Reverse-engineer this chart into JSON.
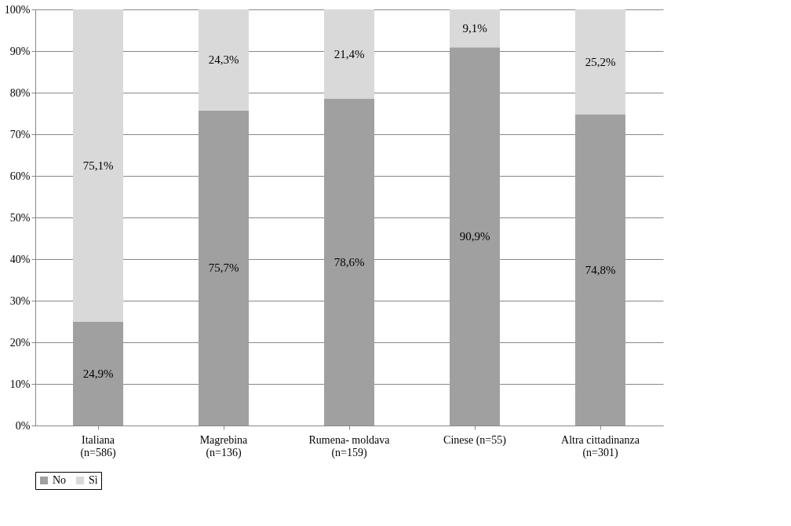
{
  "chart_data": {
    "type": "bar",
    "stacked": true,
    "categories": [
      "Italiana\n(n=586)",
      "Magrebina\n(n=136)",
      "Rumena- moldava\n(n=159)",
      "Cinese (n=55)",
      "Altra cittadinanza\n(n=301)"
    ],
    "series": [
      {
        "name": "No",
        "color": "#a0a0a0",
        "values": [
          24.9,
          75.7,
          78.6,
          90.9,
          74.8
        ],
        "value_labels": [
          "24,9%",
          "75,7%",
          "78,6%",
          "90,9%",
          "74,8%"
        ]
      },
      {
        "name": "Sì",
        "color": "#d9d9d9",
        "values": [
          75.1,
          24.3,
          21.4,
          9.1,
          25.2
        ],
        "value_labels": [
          "75,1%",
          "24,3%",
          "21,4%",
          "9,1%",
          "25,2%"
        ]
      }
    ],
    "ylim": [
      0,
      100
    ],
    "yticks": [
      {
        "value": 0,
        "label": "0%"
      },
      {
        "value": 10,
        "label": "10%"
      },
      {
        "value": 20,
        "label": "20%"
      },
      {
        "value": 30,
        "label": "30%"
      },
      {
        "value": 40,
        "label": "40%"
      },
      {
        "value": 50,
        "label": "50%"
      },
      {
        "value": 60,
        "label": "60%"
      },
      {
        "value": 70,
        "label": "70%"
      },
      {
        "value": 80,
        "label": "80%"
      },
      {
        "value": 90,
        "label": "90%"
      },
      {
        "value": 100,
        "label": "100%"
      }
    ],
    "grid": "y",
    "legend": "bottom"
  }
}
